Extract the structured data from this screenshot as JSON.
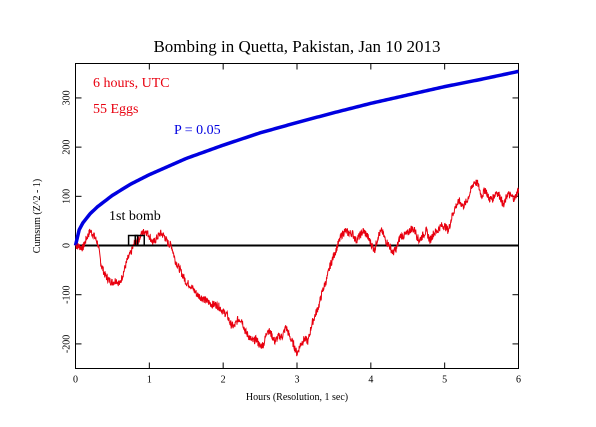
{
  "chart_data": {
    "type": "line",
    "title": "Bombing in Quetta, Pakistan, Jan 10 2013",
    "xlabel": "Hours (Resolution, 1 sec)",
    "ylabel": "Cumsum (Z^2 - 1)",
    "xlim": [
      0,
      6
    ],
    "ylim": [
      -250,
      370
    ],
    "x_ticks": [
      0,
      1,
      2,
      3,
      4,
      5,
      6
    ],
    "y_ticks": [
      -200,
      -100,
      0,
      100,
      200,
      300
    ],
    "grid": false,
    "annotations": {
      "time_window": "6 hours, UTC",
      "eggs": "55 Eggs",
      "p_label": "P = 0.05",
      "event_label": "1st bomb"
    },
    "event_markers": [
      {
        "x": 0.78,
        "y": 0
      },
      {
        "x": 0.87,
        "y": 0
      }
    ],
    "colors": {
      "cumsum": "#e8000f",
      "p_curve": "#0000e0",
      "zero_line": "#000000"
    },
    "series": [
      {
        "role": "p_envelope",
        "x": [
          0,
          0.05,
          0.1,
          0.2,
          0.3,
          0.5,
          0.75,
          1,
          1.5,
          2,
          2.5,
          3,
          3.5,
          4,
          4.5,
          5,
          5.5,
          6
        ],
        "values": [
          0,
          32,
          46,
          65,
          79,
          102,
          125,
          144,
          177,
          204,
          229,
          250,
          270,
          289,
          306,
          323,
          338,
          354
        ]
      },
      {
        "role": "cumsum",
        "x": [
          0,
          0.05,
          0.1,
          0.15,
          0.2,
          0.25,
          0.3,
          0.35,
          0.4,
          0.45,
          0.5,
          0.55,
          0.6,
          0.65,
          0.7,
          0.75,
          0.8,
          0.85,
          0.9,
          0.95,
          1.0,
          1.05,
          1.1,
          1.15,
          1.2,
          1.25,
          1.3,
          1.35,
          1.4,
          1.45,
          1.5,
          1.55,
          1.6,
          1.65,
          1.7,
          1.75,
          1.8,
          1.85,
          1.9,
          1.95,
          2.0,
          2.05,
          2.1,
          2.15,
          2.2,
          2.25,
          2.3,
          2.35,
          2.4,
          2.45,
          2.5,
          2.55,
          2.6,
          2.65,
          2.7,
          2.75,
          2.8,
          2.85,
          2.9,
          2.95,
          3.0,
          3.05,
          3.1,
          3.15,
          3.2,
          3.25,
          3.3,
          3.35,
          3.4,
          3.45,
          3.5,
          3.55,
          3.6,
          3.65,
          3.7,
          3.75,
          3.8,
          3.85,
          3.9,
          3.95,
          4.0,
          4.05,
          4.1,
          4.15,
          4.2,
          4.25,
          4.3,
          4.35,
          4.4,
          4.45,
          4.5,
          4.55,
          4.6,
          4.65,
          4.7,
          4.75,
          4.8,
          4.85,
          4.9,
          4.95,
          5.0,
          5.05,
          5.1,
          5.15,
          5.2,
          5.25,
          5.3,
          5.35,
          5.4,
          5.45,
          5.5,
          5.55,
          5.6,
          5.65,
          5.7,
          5.75,
          5.8,
          5.85,
          5.9,
          5.95,
          6.0
        ],
        "values": [
          0,
          -2,
          -5,
          15,
          30,
          20,
          5,
          -40,
          -60,
          -70,
          -75,
          -70,
          -78,
          -55,
          -30,
          -15,
          5,
          10,
          25,
          30,
          20,
          5,
          15,
          25,
          20,
          5,
          0,
          -30,
          -45,
          -60,
          -75,
          -80,
          -90,
          -100,
          -105,
          -110,
          -115,
          -120,
          -120,
          -125,
          -135,
          -140,
          -160,
          -165,
          -150,
          -150,
          -175,
          -185,
          -195,
          -190,
          -205,
          -200,
          -170,
          -180,
          -195,
          -185,
          -185,
          -165,
          -185,
          -200,
          -220,
          -200,
          -190,
          -195,
          -160,
          -140,
          -120,
          -90,
          -70,
          -40,
          -20,
          0,
          20,
          30,
          25,
          25,
          10,
          20,
          30,
          20,
          5,
          -10,
          20,
          30,
          10,
          0,
          -15,
          -5,
          20,
          20,
          25,
          35,
          30,
          10,
          20,
          30,
          10,
          25,
          30,
          40,
          40,
          30,
          60,
          80,
          90,
          80,
          90,
          110,
          130,
          125,
          100,
          115,
          95,
          95,
          110,
          100,
          80,
          105,
          100,
          95,
          115
        ]
      }
    ]
  }
}
